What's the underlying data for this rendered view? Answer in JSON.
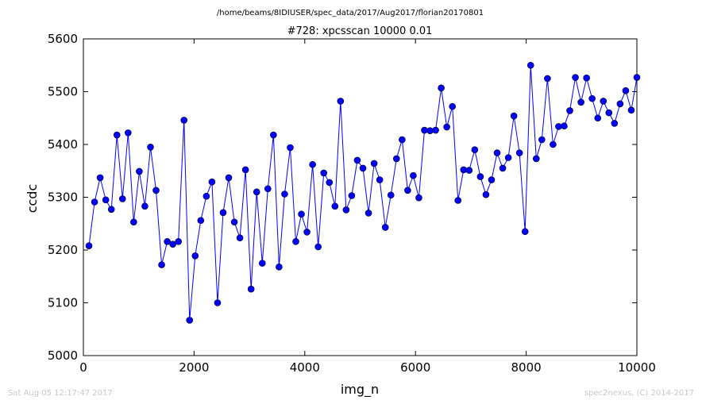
{
  "header": {
    "path": "/home/beams/8IDIUSER/spec_data/2017/Aug2017/florian20170801"
  },
  "footer": {
    "timestamp": "Sat Aug 05 12:17:47 2017",
    "credit": "spec2nexus, (C) 2014-2017"
  },
  "chart_data": {
    "type": "line",
    "title": "#728: xpcsscan 10000 0.01",
    "xlabel": "img_n",
    "ylabel": "ccdc",
    "xlim": [
      0,
      10000
    ],
    "ylim": [
      5000,
      5600
    ],
    "xticks": [
      0,
      2000,
      4000,
      6000,
      8000,
      10000
    ],
    "yticks": [
      5000,
      5100,
      5200,
      5300,
      5400,
      5500,
      5600
    ],
    "xtick_labels": [
      "0",
      "2000",
      "4000",
      "6000",
      "8000",
      "10000"
    ],
    "ytick_labels": [
      "5000",
      "5100",
      "5200",
      "5300",
      "5400",
      "5500",
      "5600"
    ],
    "grid": false,
    "line_color": "#0000ff",
    "marker_color": "#0000ff",
    "marker": "circle",
    "series": [
      {
        "x": [
          101,
          202,
          303,
          404,
          505,
          606,
          707,
          808,
          909,
          1010,
          1111,
          1212,
          1313,
          1414,
          1515,
          1616,
          1717,
          1818,
          1919,
          2020,
          2121,
          2222,
          2323,
          2424,
          2525,
          2626,
          2727,
          2828,
          2929,
          3030,
          3131,
          3232,
          3333,
          3434,
          3535,
          3636,
          3737,
          3838,
          3939,
          4040,
          4141,
          4242,
          4343,
          4444,
          4545,
          4646,
          4747,
          4848,
          4949,
          5051,
          5152,
          5253,
          5354,
          5455,
          5556,
          5657,
          5758,
          5859,
          5960,
          6061,
          6162,
          6263,
          6364,
          6465,
          6566,
          6667,
          6768,
          6869,
          6970,
          7071,
          7172,
          7273,
          7374,
          7475,
          7576,
          7677,
          7778,
          7879,
          7980,
          8081,
          8182,
          8283,
          8384,
          8485,
          8586,
          8687,
          8788,
          8889,
          8990,
          9091,
          9192,
          9293,
          9394,
          9495,
          9596,
          9697,
          9798,
          9899,
          10000
        ],
        "y": [
          5208,
          5291,
          5337,
          5295,
          5277,
          5418,
          5297,
          5422,
          5253,
          5349,
          5283,
          5395,
          5313,
          5172,
          5216,
          5211,
          5216,
          5446,
          5067,
          5189,
          5256,
          5302,
          5329,
          5100,
          5271,
          5337,
          5253,
          5223,
          5352,
          5126,
          5310,
          5175,
          5316,
          5418,
          5168,
          5306,
          5394,
          5216,
          5268,
          5234,
          5362,
          5206,
          5346,
          5328,
          5283,
          5482,
          5276,
          5303,
          5370,
          5355,
          5270,
          5364,
          5333,
          5243,
          5304,
          5373,
          5409,
          5313,
          5341,
          5299,
          5427,
          5426,
          5427,
          5507,
          5433,
          5472,
          5294,
          5352,
          5351,
          5390,
          5339,
          5305,
          5333,
          5384,
          5355,
          5375,
          5454,
          5384,
          5235,
          5550,
          5373,
          5409,
          5525,
          5400,
          5434,
          5435,
          5464,
          5527,
          5480,
          5526,
          5487,
          5450,
          5482,
          5460,
          5440,
          5477,
          5502,
          5465,
          5527
        ]
      }
    ]
  }
}
